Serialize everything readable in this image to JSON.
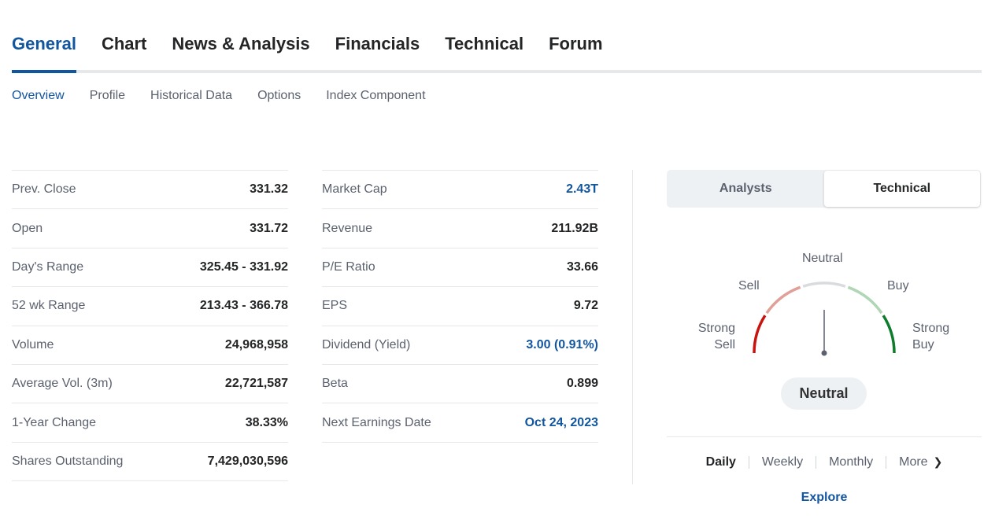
{
  "main_tabs": [
    {
      "label": "General",
      "active": true
    },
    {
      "label": "Chart"
    },
    {
      "label": "News & Analysis"
    },
    {
      "label": "Financials"
    },
    {
      "label": "Technical"
    },
    {
      "label": "Forum"
    }
  ],
  "sub_tabs": [
    {
      "label": "Overview",
      "active": true
    },
    {
      "label": "Profile"
    },
    {
      "label": "Historical Data"
    },
    {
      "label": "Options"
    },
    {
      "label": "Index Component"
    }
  ],
  "stats_left": [
    {
      "label": "Prev. Close",
      "value": "331.32"
    },
    {
      "label": "Open",
      "value": "331.72"
    },
    {
      "label": "Day's Range",
      "value": "325.45 - 331.92"
    },
    {
      "label": "52 wk Range",
      "value": "213.43 - 366.78"
    },
    {
      "label": "Volume",
      "value": "24,968,958"
    },
    {
      "label": "Average Vol. (3m)",
      "value": "22,721,587"
    },
    {
      "label": "1-Year Change",
      "value": "38.33%"
    },
    {
      "label": "Shares Outstanding",
      "value": "7,429,030,596"
    }
  ],
  "stats_right": [
    {
      "label": "Market Cap",
      "value": "2.43T",
      "link": true
    },
    {
      "label": "Revenue",
      "value": "211.92B"
    },
    {
      "label": "P/E Ratio",
      "value": "33.66"
    },
    {
      "label": "EPS",
      "value": "9.72"
    },
    {
      "label": "Dividend (Yield)",
      "value": "3.00 (0.91%)",
      "link": true
    },
    {
      "label": "Beta",
      "value": "0.899"
    },
    {
      "label": "Next Earnings Date",
      "value": "Oct 24, 2023",
      "link": true
    }
  ],
  "sentiment": {
    "toggle": {
      "analysts_label": "Analysts",
      "technical_label": "Technical",
      "selected": "Technical"
    },
    "gauge": {
      "labels": {
        "strong_sell_1": "Strong",
        "strong_sell_2": "Sell",
        "sell": "Sell",
        "neutral": "Neutral",
        "buy": "Buy",
        "strong_buy_1": "Strong",
        "strong_buy_2": "Buy"
      },
      "reading": "Neutral",
      "colors": {
        "strong_sell": "#c8140f",
        "sell": "#e0a098",
        "neutral": "#d9dcdf",
        "buy": "#b1d6b6",
        "strong_buy": "#0e7d2b",
        "needle": "#5b616e"
      }
    },
    "result": "Neutral",
    "periods": [
      {
        "label": "Daily",
        "active": true
      },
      {
        "label": "Weekly"
      },
      {
        "label": "Monthly"
      },
      {
        "label": "More"
      }
    ],
    "explore_label": "Explore"
  }
}
